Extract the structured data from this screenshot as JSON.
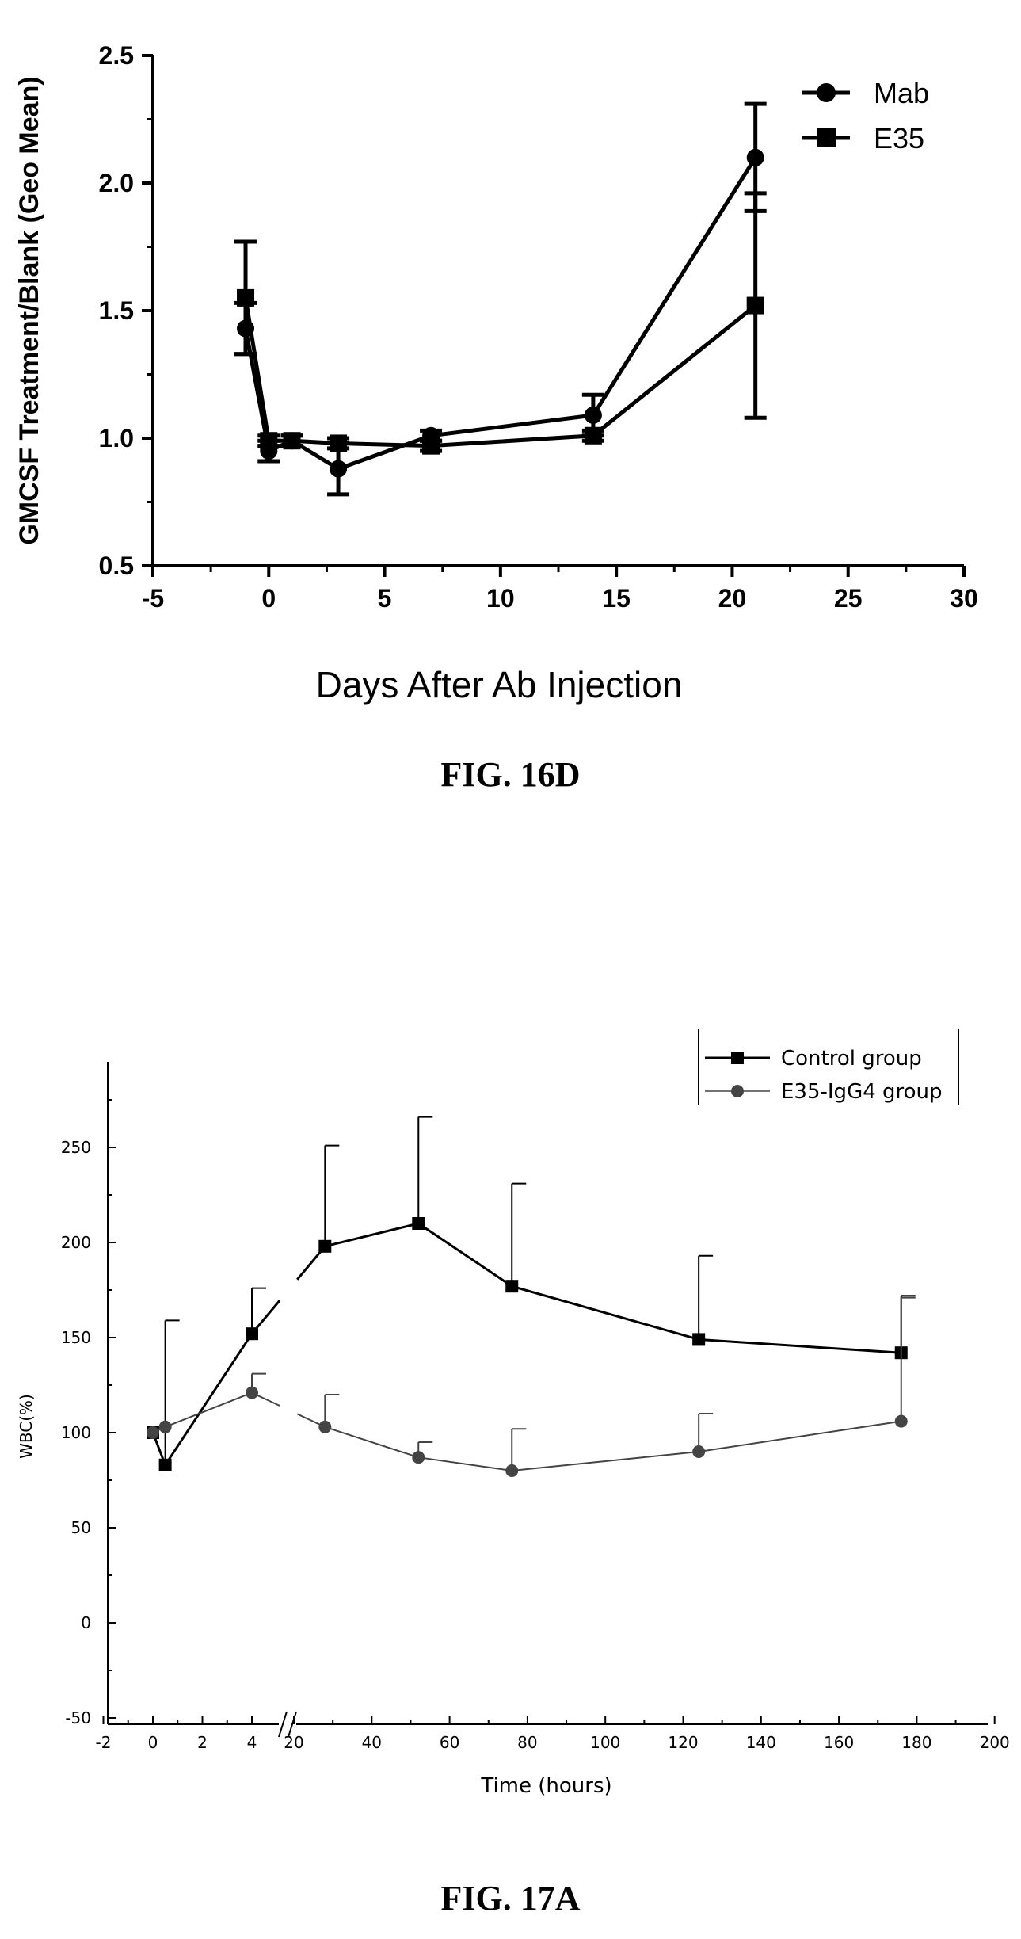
{
  "charts": {
    "fig16d": {
      "caption": "FIG. 16D",
      "chart_data": {
        "type": "line",
        "title": "",
        "xlabel": "Days After Ab Injection",
        "ylabel": "GMCSF Treatment/Blank (Geo Mean)",
        "xlim": [
          -5,
          30
        ],
        "ylim": [
          0.5,
          2.5
        ],
        "xticks": [
          -5,
          0,
          5,
          10,
          15,
          20,
          25,
          30
        ],
        "yticks": [
          0.5,
          1.0,
          1.5,
          2.0,
          2.5
        ],
        "xtick_labels": [
          "-5",
          "0",
          "5",
          "10",
          "15",
          "20",
          "25",
          "30"
        ],
        "ytick_labels": [
          "0.5",
          "1.0",
          "1.5",
          "2.0",
          "2.5"
        ],
        "legend_position": "top-right",
        "grid": false,
        "series": [
          {
            "name": "Mab",
            "marker": "circle",
            "color": "#000000",
            "x": [
              -1,
              0,
              1,
              3,
              7,
              14,
              21
            ],
            "y": [
              1.43,
              0.95,
              0.99,
              0.88,
              1.01,
              1.09,
              2.1
            ],
            "err": [
              0.1,
              0.04,
              0.02,
              0.1,
              0.02,
              0.08,
              0.21
            ]
          },
          {
            "name": "E35",
            "marker": "square",
            "color": "#000000",
            "x": [
              -1,
              0,
              1,
              3,
              7,
              14,
              21
            ],
            "y": [
              1.55,
              0.99,
              0.99,
              0.98,
              0.97,
              1.01,
              1.52
            ],
            "err": [
              0.22,
              0.02,
              0.02,
              0.02,
              0.02,
              0.02,
              0.44
            ]
          }
        ]
      }
    },
    "fig17a": {
      "caption": "FIG. 17A",
      "chart_data": {
        "type": "line",
        "title": "",
        "xlabel": "Time (hours)",
        "ylabel": "WBC(%)",
        "ylim": [
          -50,
          290
        ],
        "broken_x_axis": true,
        "xlim_segment1": [
          -2,
          5
        ],
        "xlim_segment2": [
          15,
          200
        ],
        "xtick_labels_segment1": [
          "-2",
          "0",
          "2",
          "4"
        ],
        "xtick_labels_segment2": [
          "20",
          "40",
          "60",
          "80",
          "100",
          "120",
          "140",
          "160",
          "180",
          "200"
        ],
        "ytick_labels": [
          "-50",
          "0",
          "50",
          "100",
          "150",
          "200",
          "250"
        ],
        "yticks": [
          -50,
          0,
          50,
          100,
          150,
          200,
          250
        ],
        "legend_position": "top-right",
        "grid": false,
        "series": [
          {
            "name": "Control group",
            "marker": "square",
            "color": "#000000",
            "x": [
              0,
              0.5,
              4,
              28,
              52,
              76,
              124,
              176
            ],
            "y": [
              100,
              83,
              152,
              198,
              210,
              177,
              149,
              142
            ],
            "err": [
              0,
              76,
              24,
              53,
              56,
              54,
              44,
              30
            ]
          },
          {
            "name": "E35-IgG4 group",
            "marker": "circle",
            "color": "#444444",
            "x": [
              0,
              0.5,
              4,
              28,
              52,
              76,
              124,
              176
            ],
            "y": [
              100,
              103,
              121,
              103,
              87,
              80,
              90,
              106
            ],
            "err": [
              0,
              0,
              10,
              17,
              8,
              22,
              20,
              65
            ]
          }
        ]
      }
    }
  }
}
